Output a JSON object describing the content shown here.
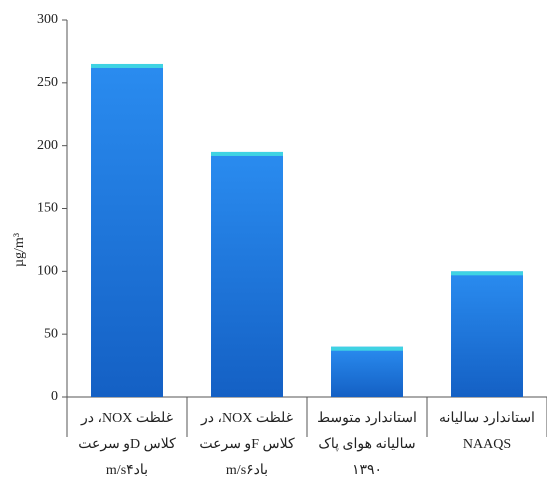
{
  "chart_data": {
    "type": "bar",
    "y_label": "µg/m³",
    "categories": [
      [
        "غلظت NOX، در",
        "کلاس Dو سرعت",
        "بادm/s۴"
      ],
      [
        "غلظت NOX، در",
        "کلاس Fو سرعت",
        "بادm/s۶"
      ],
      [
        "استاندارد متوسط",
        "سالیانه هوای پاک",
        "۱۳۹۰"
      ],
      [
        "استاندارد سالیانه",
        "NAAQS"
      ]
    ],
    "values": [
      265,
      195,
      40,
      100
    ],
    "color": "#1a6fd6",
    "ylim": [
      0,
      300
    ],
    "yticks": [
      0,
      50,
      100,
      150,
      200,
      250,
      300
    ],
    "grid": false
  }
}
